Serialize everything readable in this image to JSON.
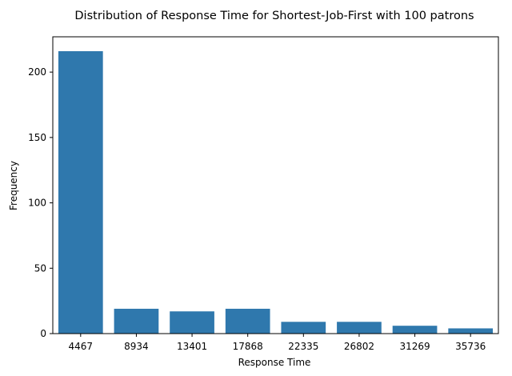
{
  "chart_data": {
    "type": "bar",
    "title": "Distribution of Response Time for Shortest-Job-First with 100 patrons",
    "xlabel": "Response Time",
    "ylabel": "Frequency",
    "categories": [
      "4467",
      "8934",
      "13401",
      "17868",
      "22335",
      "26802",
      "31269",
      "35736"
    ],
    "values": [
      216,
      19,
      17,
      19,
      9,
      9,
      6,
      4
    ],
    "ylim": [
      0,
      227
    ],
    "yticks": [
      0,
      50,
      100,
      150,
      200
    ],
    "grid": false,
    "legend": "none",
    "bar_color": "#2f78ad"
  }
}
